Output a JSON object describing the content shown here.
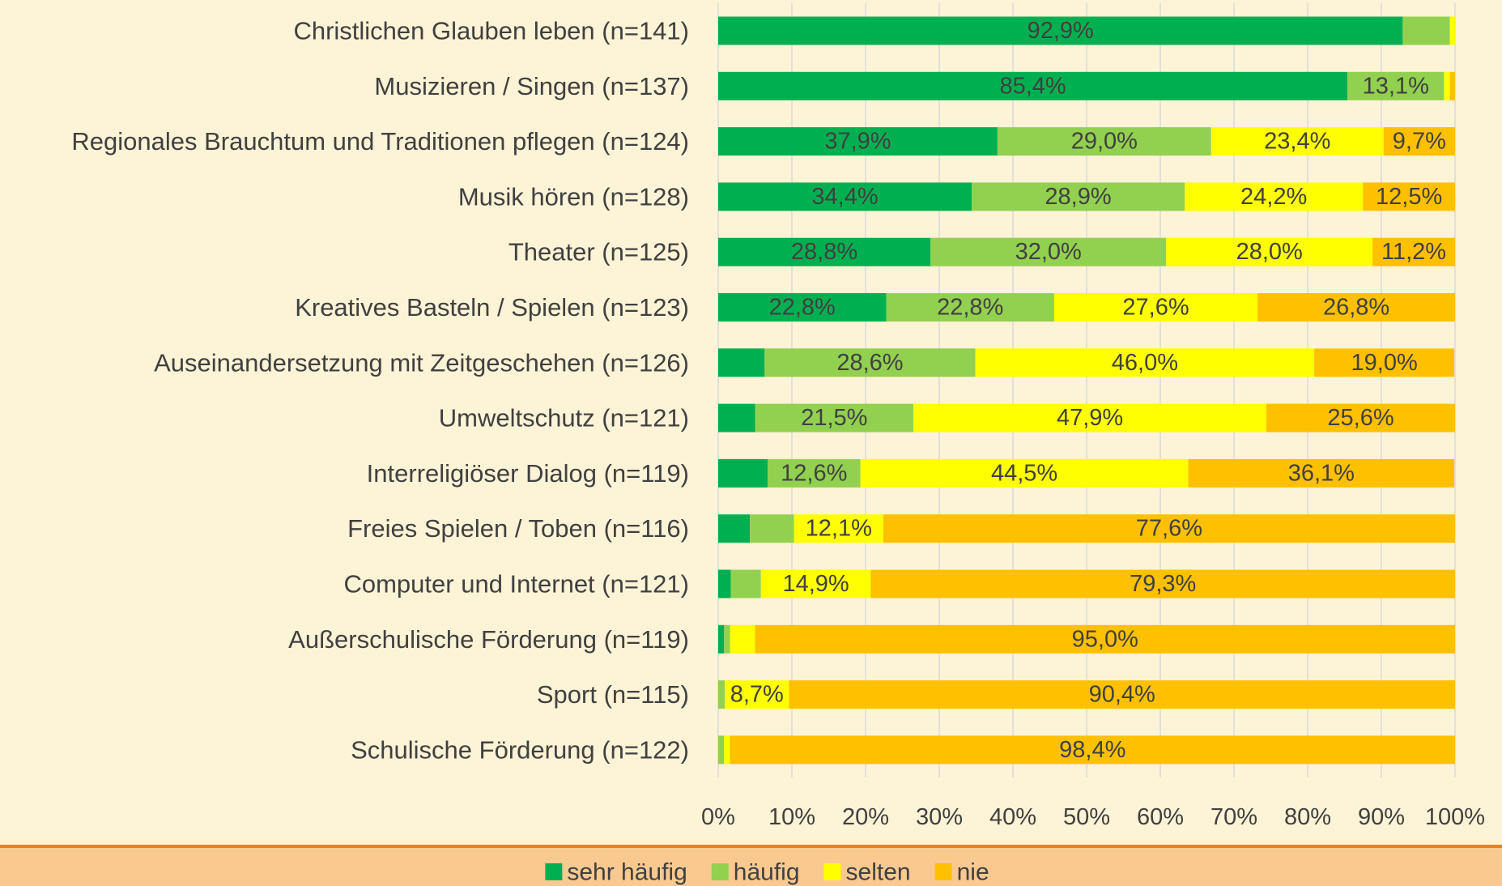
{
  "chart_data": {
    "type": "stacked_bar_horizontal",
    "categories": [
      "Christlichen Glauben leben (n=141)",
      "Musizieren / Singen (n=137)",
      "Regionales Brauchtum und Traditionen pflegen (n=124)",
      "Musik hören (n=128)",
      "Theater (n=125)",
      "Kreatives Basteln / Spielen (n=123)",
      "Auseinandersetzung mit Zeitgeschehen (n=126)",
      "Umweltschutz (n=121)",
      "Interreligiöser Dialog (n=119)",
      "Freies Spielen / Toben (n=116)",
      "Computer und Internet (n=121)",
      "Außerschulische Förderung (n=119)",
      "Sport (n=115)",
      "Schulische Förderung (n=122)"
    ],
    "series": [
      {
        "name": "sehr häufig",
        "color": "#00b050",
        "values": [
          92.9,
          85.4,
          37.9,
          34.4,
          28.8,
          22.8,
          6.3,
          5.0,
          6.7,
          4.3,
          1.7,
          0.8,
          0,
          0
        ],
        "value_labels": [
          "92,9%",
          "85,4%",
          "37,9%",
          "34,4%",
          "28,8%",
          "22,8%",
          null,
          null,
          null,
          null,
          null,
          null,
          null,
          null
        ]
      },
      {
        "name": "häufig",
        "color": "#92d050",
        "values": [
          6.4,
          13.1,
          29.0,
          28.9,
          32.0,
          22.8,
          28.6,
          21.5,
          12.6,
          6.0,
          4.1,
          0.8,
          0.9,
          0.8
        ],
        "value_labels": [
          null,
          "13,1%",
          "29,0%",
          "28,9%",
          "32,0%",
          "22,8%",
          "28,6%",
          "21,5%",
          "12,6%",
          null,
          null,
          null,
          null,
          null
        ]
      },
      {
        "name": "selten",
        "color": "#ffff00",
        "values": [
          0.7,
          0.8,
          23.4,
          24.2,
          28.0,
          27.6,
          46.0,
          47.9,
          44.5,
          12.1,
          14.9,
          3.4,
          8.7,
          0.8
        ],
        "value_labels": [
          null,
          null,
          "23,4%",
          "24,2%",
          "28,0%",
          "27,6%",
          "46,0%",
          "47,9%",
          "44,5%",
          "12,1%",
          "14,9%",
          null,
          "8,7%",
          null
        ]
      },
      {
        "name": "nie",
        "color": "#ffc000",
        "values": [
          0,
          0.7,
          9.7,
          12.5,
          11.2,
          26.8,
          19.0,
          25.6,
          36.1,
          77.6,
          79.3,
          95.0,
          90.4,
          98.4
        ],
        "value_labels": [
          null,
          null,
          "9,7%",
          "12,5%",
          "11,2%",
          "26,8%",
          "19,0%",
          "25,6%",
          "36,1%",
          "77,6%",
          "79,3%",
          "95,0%",
          "90,4%",
          "98,4%"
        ]
      }
    ],
    "xlim": [
      0,
      100
    ],
    "xticks": [
      {
        "value": 0,
        "label": "0%"
      },
      {
        "value": 10,
        "label": "10%"
      },
      {
        "value": 20,
        "label": "20%"
      },
      {
        "value": 30,
        "label": "30%"
      },
      {
        "value": 40,
        "label": "40%"
      },
      {
        "value": 50,
        "label": "50%"
      },
      {
        "value": 60,
        "label": "60%"
      },
      {
        "value": 70,
        "label": "70%"
      },
      {
        "value": 80,
        "label": "80%"
      },
      {
        "value": 90,
        "label": "90%"
      },
      {
        "value": 100,
        "label": "100%"
      }
    ],
    "grid": true,
    "legend": "bottom"
  }
}
